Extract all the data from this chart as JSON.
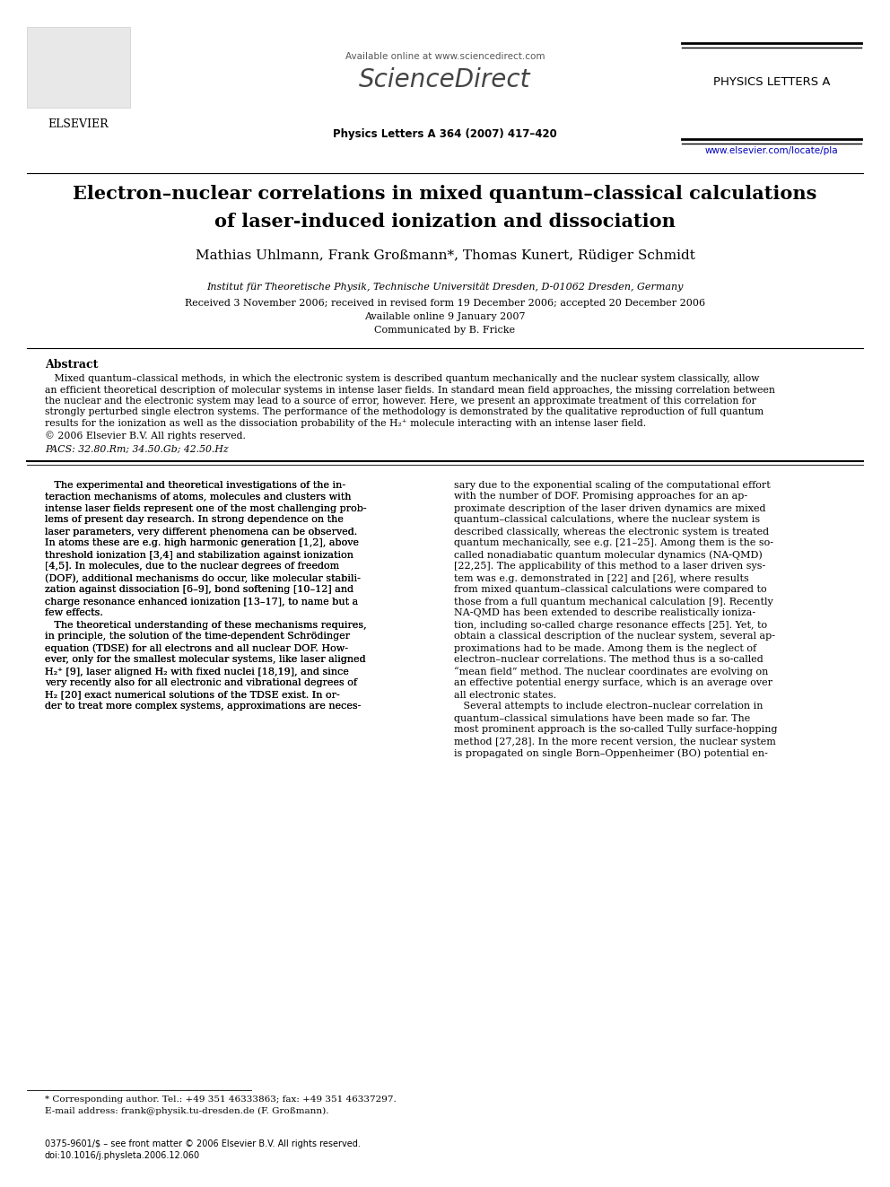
{
  "bg_color": "#ffffff",
  "page_width": 9.92,
  "page_height": 13.23,
  "header": {
    "available_online": "Available online at www.sciencedirect.com",
    "sciencedirect": "ScienceDirect",
    "journal_name": "PHYSICS LETTERS A",
    "journal_info": "Physics Letters A 364 (2007) 417–420",
    "url": "www.elsevier.com/locate/pla"
  },
  "title_line1": "Electron–nuclear correlations in mixed quantum–classical calculations",
  "title_line2": "of laser-induced ionization and dissociation",
  "authors": "Mathias Uhlmann, Frank Großmann*, Thomas Kunert, Rüdiger Schmidt",
  "affiliation": "Institut für Theoretische Physik, Technische Universität Dresden, D-01062 Dresden, Germany",
  "received": "Received 3 November 2006; received in revised form 19 December 2006; accepted 20 December 2006",
  "available": "Available online 9 January 2007",
  "communicated": "Communicated by B. Fricke",
  "abstract_title": "Abstract",
  "copyright": "© 2006 Elsevier B.V. All rights reserved.",
  "pacs": "PACS: 32.80.Rm; 34.50.Gb; 42.50.Hz",
  "abstract_lines": [
    "   Mixed quantum–classical methods, in which the electronic system is described quantum mechanically and the nuclear system classically, allow",
    "an efficient theoretical description of molecular systems in intense laser fields. In standard mean field approaches, the missing correlation between",
    "the nuclear and the electronic system may lead to a source of error, however. Here, we present an approximate treatment of this correlation for",
    "strongly perturbed single electron systems. The performance of the methodology is demonstrated by the qualitative reproduction of full quantum",
    "results for the ionization as well as the dissociation probability of the H₂⁺ molecule interacting with an intense laser field."
  ],
  "col1_lines": [
    "   The experimental and theoretical investigations of the in-",
    "teraction mechanisms of atoms, molecules and clusters with",
    "intense laser fields represent one of the most challenging prob-",
    "lems of present day research. In strong dependence on the",
    "laser parameters, very different phenomena can be observed.",
    "In atoms these are e.g. high harmonic generation [1,2], above",
    "threshold ionization [3,4] and stabilization against ionization",
    "[4,5]. In molecules, due to the nuclear degrees of freedom",
    "(DOF), additional mechanisms do occur, like molecular stabili-",
    "zation against dissociation [6–9], bond softening [10–12] and",
    "charge resonance enhanced ionization [13–17], to name but a",
    "few effects.",
    "   The theoretical understanding of these mechanisms requires,",
    "in principle, the solution of the time-dependent Schrödinger",
    "equation (TDSE) for all electrons and all nuclear DOF. How-",
    "ever, only for the smallest molecular systems, like laser aligned",
    "H₂⁺ [9], laser aligned H₂ with fixed nuclei [18,19], and since",
    "very recently also for all electronic and vibrational degrees of",
    "H₂ [20] exact numerical solutions of the TDSE exist. In or-",
    "der to treat more complex systems, approximations are neces-"
  ],
  "col2_lines": [
    "sary due to the exponential scaling of the computational effort",
    "with the number of DOF. Promising approaches for an ap-",
    "proximate description of the laser driven dynamics are mixed",
    "quantum–classical calculations, where the nuclear system is",
    "described classically, whereas the electronic system is treated",
    "quantum mechanically, see e.g. [21–25]. Among them is the so-",
    "called nonadiabatic quantum molecular dynamics (NA-QMD)",
    "[22,25]. The applicability of this method to a laser driven sys-",
    "tem was e.g. demonstrated in [22] and [26], where results",
    "from mixed quantum–classical calculations were compared to",
    "those from a full quantum mechanical calculation [9]. Recently",
    "NA-QMD has been extended to describe realistically ioniza-",
    "tion, including so-called charge resonance effects [25]. Yet, to",
    "obtain a classical description of the nuclear system, several ap-",
    "proximations had to be made. Among them is the neglect of",
    "electron–nuclear correlations. The method thus is a so-called",
    "“mean field” method. The nuclear coordinates are evolving on",
    "an effective potential energy surface, which is an average over",
    "all electronic states.",
    "   Several attempts to include electron–nuclear correlation in",
    "quantum–classical simulations have been made so far. The",
    "most prominent approach is the so-called Tully surface-hopping",
    "method [27,28]. In the more recent version, the nuclear system",
    "is propagated on single Born–Oppenheimer (BO) potential en-"
  ],
  "footnote_star": "* Corresponding author. Tel.: +49 351 46333863; fax: +49 351 46337297.",
  "footnote_email": "E-mail address: frank@physik.tu-dresden.de (F. Großmann).",
  "footer_issn": "0375-9601/$ – see front matter © 2006 Elsevier B.V. All rights reserved.",
  "footer_doi": "doi:10.1016/j.physleta.2006.12.060"
}
